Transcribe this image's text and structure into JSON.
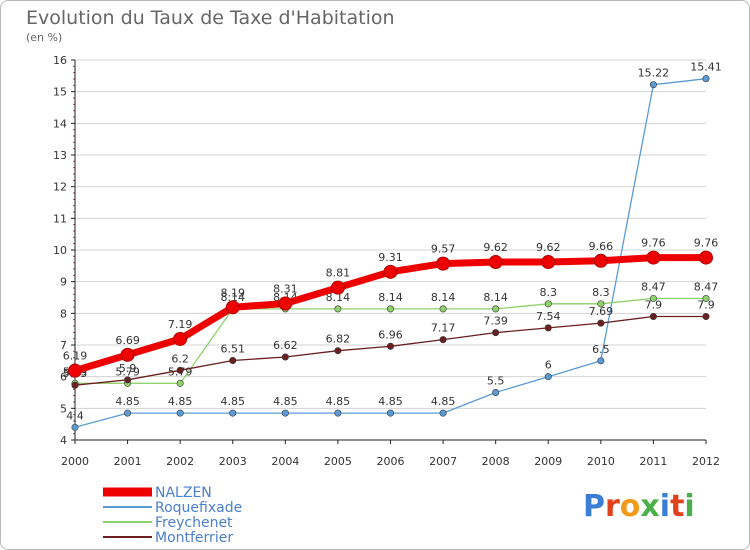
{
  "title": "Evolution du Taux de Taxe d'Habitation",
  "subtitle": "(en %)",
  "colors": {
    "NALZEN": "#ee0000",
    "Roquefixade": "#5b9bd5",
    "Freychenet": "#8fd16a",
    "Montferrier": "#6b1f1f",
    "axis": "#222222",
    "grid": "#d3d3d3",
    "legend_text": "#4a7fd1"
  },
  "logo": "Proxiti",
  "chart_data": {
    "type": "line",
    "title": "Evolution du Taux de Taxe d'Habitation",
    "ylabel": "(en %)",
    "x": [
      2000,
      2001,
      2002,
      2003,
      2004,
      2005,
      2006,
      2007,
      2008,
      2009,
      2010,
      2011,
      2012
    ],
    "ylim": [
      4,
      16
    ],
    "yticks": [
      4,
      5,
      6,
      7,
      8,
      9,
      10,
      11,
      12,
      13,
      14,
      15,
      16
    ],
    "grid": "horizontal",
    "legend": "bottom",
    "series": [
      {
        "name": "NALZEN",
        "values": [
          6.19,
          6.69,
          7.19,
          8.19,
          8.31,
          8.81,
          9.31,
          9.57,
          9.62,
          9.62,
          9.66,
          9.76,
          9.76
        ],
        "labels": [
          "6.19",
          "6.69",
          "7.19",
          "8.19",
          "8.31",
          "8.81",
          "9.31",
          "9.57",
          "9.62",
          "9.62",
          "9.66",
          "9.76",
          "9.76"
        ]
      },
      {
        "name": "Roquefixade",
        "values": [
          4.4,
          4.85,
          4.85,
          4.85,
          4.85,
          4.85,
          4.85,
          4.85,
          5.5,
          6,
          6.5,
          15.22,
          15.41
        ],
        "labels": [
          "4.4",
          "4.85",
          "4.85",
          "4.85",
          "4.85",
          "4.85",
          "4.85",
          "4.85",
          "5.5",
          "6",
          "6.5",
          "15.22",
          "15.41"
        ]
      },
      {
        "name": "Freychenet",
        "values": [
          5.79,
          5.79,
          5.79,
          8.14,
          8.14,
          8.14,
          8.14,
          8.14,
          8.14,
          8.3,
          8.3,
          8.47,
          8.47
        ],
        "labels": [
          "5.79",
          "5.79",
          "5.79",
          "8.14",
          "8.14",
          "8.14",
          "8.14",
          "8.14",
          "8.14",
          "8.3",
          "8.3",
          "8.47",
          "8.47"
        ]
      },
      {
        "name": "Montferrier",
        "values": [
          5.73,
          5.9,
          6.2,
          6.51,
          6.62,
          6.82,
          6.96,
          7.17,
          7.39,
          7.54,
          7.69,
          7.9,
          7.9
        ],
        "labels": [
          "5.73",
          "5.9",
          "6.2",
          "6.51",
          "6.62",
          "6.82",
          "6.96",
          "7.17",
          "7.39",
          "7.54",
          "7.69",
          "7.9",
          "7.9"
        ]
      }
    ]
  }
}
